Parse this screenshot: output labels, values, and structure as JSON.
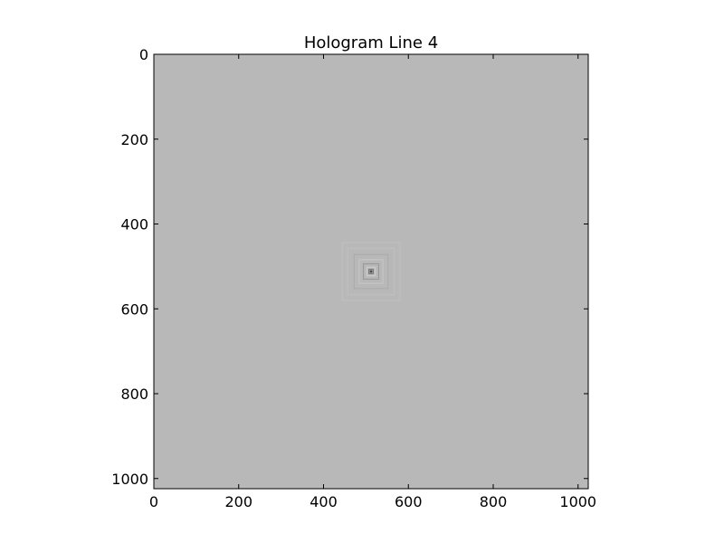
{
  "chart_data": {
    "type": "heatmap",
    "title": "Hologram Line 4",
    "xlabel": "",
    "ylabel": "",
    "xlim": [
      0,
      1024
    ],
    "ylim": [
      1024,
      0
    ],
    "y_axis_inverted": true,
    "x_ticks": [
      "0",
      "200",
      "400",
      "600",
      "800",
      "1000"
    ],
    "y_ticks": [
      "0",
      "200",
      "400",
      "600",
      "800",
      "1000"
    ],
    "grid": false,
    "colormap": "gray",
    "background_color": "#b8b8b8",
    "pattern": {
      "center": [
        512,
        512
      ],
      "rings": [
        {
          "half_size": 68,
          "color": "#c8c8c8",
          "opacity": 0.5
        },
        {
          "half_size": 55,
          "color": "#c6c6c6",
          "opacity": 0.6
        },
        {
          "half_size": 40,
          "color": "#a4a4a4",
          "opacity": 0.7
        },
        {
          "half_size": 28,
          "color": "#cccccc",
          "opacity": 0.8
        },
        {
          "half_size": 18,
          "color": "#8f8f8f",
          "opacity": 0.8
        },
        {
          "half_size": 10,
          "color": "#d0d0d0",
          "opacity": 0.9
        },
        {
          "half_size": 5,
          "color": "#707070",
          "opacity": 1.0
        }
      ]
    }
  }
}
